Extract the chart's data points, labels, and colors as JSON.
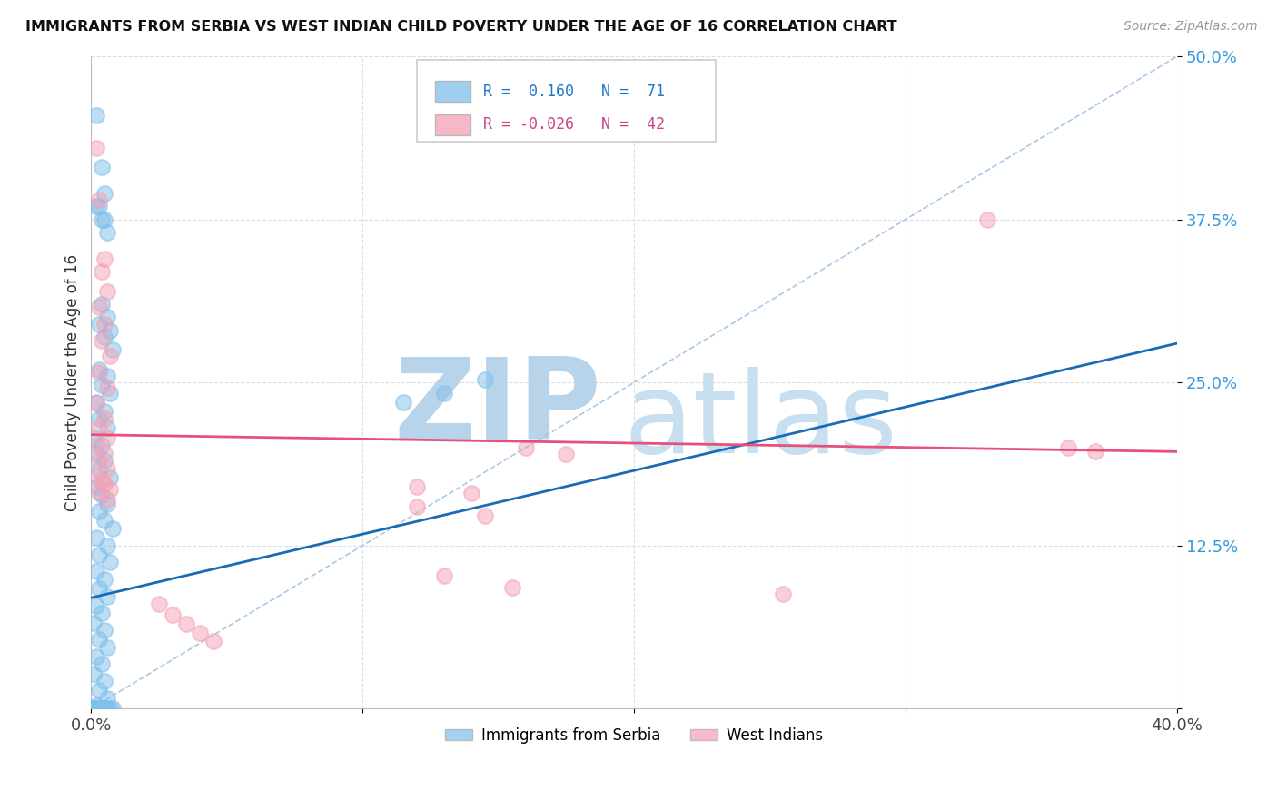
{
  "title": "IMMIGRANTS FROM SERBIA VS WEST INDIAN CHILD POVERTY UNDER THE AGE OF 16 CORRELATION CHART",
  "source": "Source: ZipAtlas.com",
  "xlabel_blue": "Immigrants from Serbia",
  "xlabel_pink": "West Indians",
  "ylabel": "Child Poverty Under the Age of 16",
  "xlim": [
    0.0,
    0.4
  ],
  "ylim": [
    0.0,
    0.5
  ],
  "R_blue": 0.16,
  "N_blue": 71,
  "R_pink": -0.026,
  "N_pink": 42,
  "blue_color": "#7fbfea",
  "pink_color": "#f4a0b5",
  "blue_line_color": "#1a6bb5",
  "pink_line_color": "#e8507a",
  "diag_line_color": "#a8c8e8",
  "watermark_zip": "ZIP",
  "watermark_atlas": "atlas",
  "watermark_color": "#c8dff0",
  "background": "#ffffff",
  "blue_scatter": [
    [
      0.002,
      0.455
    ],
    [
      0.004,
      0.415
    ],
    [
      0.005,
      0.395
    ],
    [
      0.002,
      0.385
    ],
    [
      0.004,
      0.375
    ],
    [
      0.006,
      0.365
    ],
    [
      0.003,
      0.385
    ],
    [
      0.005,
      0.375
    ],
    [
      0.004,
      0.31
    ],
    [
      0.006,
      0.3
    ],
    [
      0.003,
      0.295
    ],
    [
      0.007,
      0.29
    ],
    [
      0.005,
      0.285
    ],
    [
      0.008,
      0.275
    ],
    [
      0.003,
      0.26
    ],
    [
      0.006,
      0.255
    ],
    [
      0.004,
      0.248
    ],
    [
      0.007,
      0.242
    ],
    [
      0.002,
      0.235
    ],
    [
      0.005,
      0.228
    ],
    [
      0.003,
      0.222
    ],
    [
      0.006,
      0.215
    ],
    [
      0.001,
      0.208
    ],
    [
      0.004,
      0.202
    ],
    [
      0.002,
      0.196
    ],
    [
      0.005,
      0.19
    ],
    [
      0.003,
      0.183
    ],
    [
      0.007,
      0.177
    ],
    [
      0.002,
      0.17
    ],
    [
      0.004,
      0.164
    ],
    [
      0.006,
      0.157
    ],
    [
      0.003,
      0.151
    ],
    [
      0.005,
      0.144
    ],
    [
      0.008,
      0.138
    ],
    [
      0.002,
      0.131
    ],
    [
      0.006,
      0.125
    ],
    [
      0.003,
      0.118
    ],
    [
      0.007,
      0.112
    ],
    [
      0.002,
      0.105
    ],
    [
      0.005,
      0.099
    ],
    [
      0.003,
      0.092
    ],
    [
      0.006,
      0.086
    ],
    [
      0.002,
      0.079
    ],
    [
      0.004,
      0.073
    ],
    [
      0.001,
      0.066
    ],
    [
      0.005,
      0.06
    ],
    [
      0.003,
      0.053
    ],
    [
      0.006,
      0.047
    ],
    [
      0.002,
      0.04
    ],
    [
      0.004,
      0.034
    ],
    [
      0.001,
      0.027
    ],
    [
      0.005,
      0.021
    ],
    [
      0.003,
      0.014
    ],
    [
      0.006,
      0.008
    ],
    [
      0.002,
      0.002
    ],
    [
      0.004,
      0.0
    ],
    [
      0.001,
      0.0
    ],
    [
      0.003,
      0.0
    ],
    [
      0.005,
      0.0
    ],
    [
      0.007,
      0.0
    ],
    [
      0.002,
      0.0
    ],
    [
      0.004,
      0.0
    ],
    [
      0.006,
      0.0
    ],
    [
      0.003,
      0.0
    ],
    [
      0.001,
      0.0
    ],
    [
      0.005,
      0.0
    ],
    [
      0.008,
      0.0
    ],
    [
      0.002,
      0.0
    ],
    [
      0.115,
      0.235
    ],
    [
      0.13,
      0.242
    ],
    [
      0.145,
      0.252
    ]
  ],
  "pink_scatter": [
    [
      0.36,
      0.2
    ],
    [
      0.37,
      0.197
    ],
    [
      0.33,
      0.375
    ],
    [
      0.002,
      0.43
    ],
    [
      0.003,
      0.39
    ],
    [
      0.005,
      0.345
    ],
    [
      0.004,
      0.335
    ],
    [
      0.006,
      0.32
    ],
    [
      0.003,
      0.308
    ],
    [
      0.005,
      0.295
    ],
    [
      0.004,
      0.282
    ],
    [
      0.007,
      0.27
    ],
    [
      0.003,
      0.258
    ],
    [
      0.006,
      0.246
    ],
    [
      0.002,
      0.234
    ],
    [
      0.005,
      0.222
    ],
    [
      0.003,
      0.215
    ],
    [
      0.006,
      0.208
    ],
    [
      0.002,
      0.202
    ],
    [
      0.005,
      0.196
    ],
    [
      0.003,
      0.19
    ],
    [
      0.006,
      0.184
    ],
    [
      0.002,
      0.178
    ],
    [
      0.005,
      0.172
    ],
    [
      0.003,
      0.166
    ],
    [
      0.006,
      0.16
    ],
    [
      0.004,
      0.175
    ],
    [
      0.007,
      0.168
    ],
    [
      0.12,
      0.17
    ],
    [
      0.14,
      0.165
    ],
    [
      0.16,
      0.2
    ],
    [
      0.175,
      0.195
    ],
    [
      0.12,
      0.155
    ],
    [
      0.145,
      0.148
    ],
    [
      0.13,
      0.102
    ],
    [
      0.155,
      0.093
    ],
    [
      0.025,
      0.08
    ],
    [
      0.03,
      0.072
    ],
    [
      0.035,
      0.065
    ],
    [
      0.04,
      0.058
    ],
    [
      0.045,
      0.052
    ],
    [
      0.255,
      0.088
    ]
  ]
}
